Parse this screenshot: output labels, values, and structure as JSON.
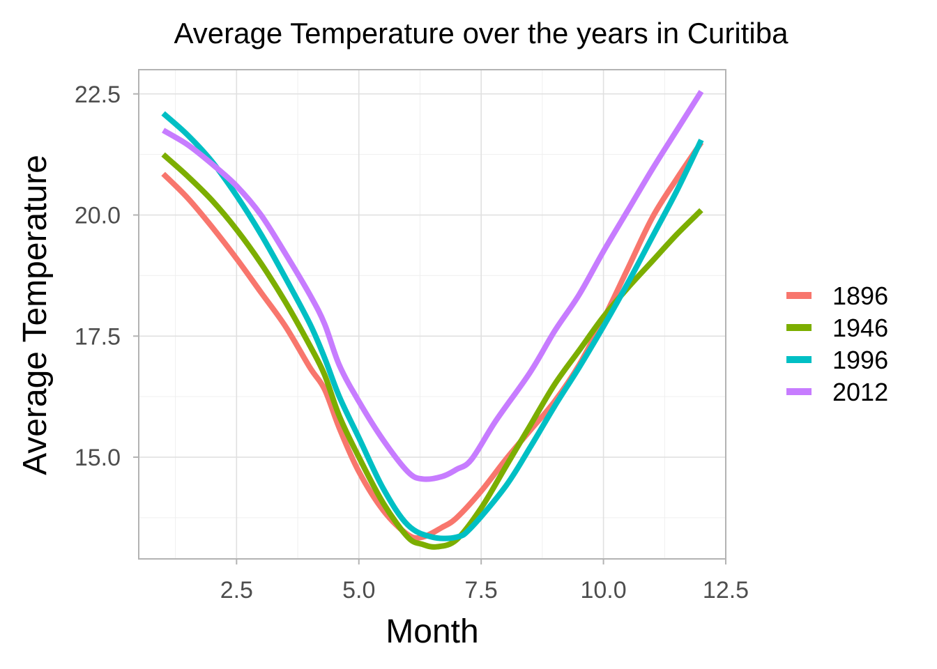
{
  "chart_data": {
    "type": "line",
    "title": "Average Temperature over the years in Curitiba",
    "xlabel": "Month",
    "ylabel": "Average Temperature",
    "xlim": [
      0.5,
      12.5
    ],
    "ylim": [
      12.9,
      23.0
    ],
    "x_ticks": [
      2.5,
      5.0,
      7.5,
      10.0,
      12.5
    ],
    "x_tick_labels": [
      "2.5",
      "5.0",
      "7.5",
      "10.0",
      "12.5"
    ],
    "y_ticks": [
      15.0,
      17.5,
      20.0,
      22.5
    ],
    "y_tick_labels": [
      "15.0",
      "17.5",
      "20.0",
      "22.5"
    ],
    "grid": true,
    "legend_position": "right",
    "series": [
      {
        "name": "1896",
        "color": "#F8766D",
        "points": [
          [
            1,
            20.85
          ],
          [
            1.5,
            20.35
          ],
          [
            2,
            19.75
          ],
          [
            2.5,
            19.1
          ],
          [
            3,
            18.4
          ],
          [
            3.5,
            17.7
          ],
          [
            4,
            16.85
          ],
          [
            4.3,
            16.4
          ],
          [
            4.6,
            15.6
          ],
          [
            5,
            14.7
          ],
          [
            5.5,
            13.9
          ],
          [
            6,
            13.4
          ],
          [
            6.3,
            13.35
          ],
          [
            6.7,
            13.55
          ],
          [
            7,
            13.75
          ],
          [
            7.5,
            14.3
          ],
          [
            8,
            14.95
          ],
          [
            8.5,
            15.55
          ],
          [
            9,
            16.15
          ],
          [
            9.5,
            16.9
          ],
          [
            10,
            17.85
          ],
          [
            10.5,
            18.9
          ],
          [
            11,
            19.95
          ],
          [
            11.5,
            20.75
          ],
          [
            12,
            21.5
          ]
        ]
      },
      {
        "name": "1946",
        "color": "#7CAE00",
        "points": [
          [
            1,
            21.25
          ],
          [
            1.5,
            20.8
          ],
          [
            2,
            20.3
          ],
          [
            2.5,
            19.7
          ],
          [
            3,
            19.0
          ],
          [
            3.5,
            18.2
          ],
          [
            4,
            17.3
          ],
          [
            4.3,
            16.7
          ],
          [
            4.6,
            15.85
          ],
          [
            5,
            15.0
          ],
          [
            5.5,
            14.05
          ],
          [
            6,
            13.35
          ],
          [
            6.3,
            13.2
          ],
          [
            6.6,
            13.15
          ],
          [
            7,
            13.3
          ],
          [
            7.5,
            13.95
          ],
          [
            8,
            14.8
          ],
          [
            8.5,
            15.65
          ],
          [
            9,
            16.5
          ],
          [
            9.5,
            17.2
          ],
          [
            10,
            17.9
          ],
          [
            10.5,
            18.5
          ],
          [
            11,
            19.05
          ],
          [
            11.5,
            19.6
          ],
          [
            12,
            20.1
          ]
        ]
      },
      {
        "name": "1996",
        "color": "#00BFC4",
        "points": [
          [
            1,
            22.1
          ],
          [
            1.5,
            21.65
          ],
          [
            2,
            21.1
          ],
          [
            2.5,
            20.4
          ],
          [
            3,
            19.6
          ],
          [
            3.5,
            18.7
          ],
          [
            4,
            17.75
          ],
          [
            4.3,
            17.05
          ],
          [
            4.6,
            16.25
          ],
          [
            5,
            15.4
          ],
          [
            5.5,
            14.35
          ],
          [
            6,
            13.6
          ],
          [
            6.5,
            13.35
          ],
          [
            7,
            13.35
          ],
          [
            7.3,
            13.55
          ],
          [
            8,
            14.4
          ],
          [
            8.5,
            15.2
          ],
          [
            9,
            16.05
          ],
          [
            9.5,
            16.85
          ],
          [
            10,
            17.7
          ],
          [
            10.5,
            18.6
          ],
          [
            11,
            19.55
          ],
          [
            11.5,
            20.5
          ],
          [
            12,
            21.55
          ]
        ]
      },
      {
        "name": "2012",
        "color": "#C77CFF",
        "points": [
          [
            1,
            21.75
          ],
          [
            1.5,
            21.45
          ],
          [
            2,
            21.05
          ],
          [
            2.5,
            20.6
          ],
          [
            3,
            20.0
          ],
          [
            3.5,
            19.2
          ],
          [
            4,
            18.35
          ],
          [
            4.3,
            17.75
          ],
          [
            4.6,
            16.9
          ],
          [
            5,
            16.15
          ],
          [
            5.5,
            15.35
          ],
          [
            6,
            14.7
          ],
          [
            6.3,
            14.55
          ],
          [
            6.7,
            14.6
          ],
          [
            7,
            14.75
          ],
          [
            7.3,
            14.95
          ],
          [
            7.8,
            15.75
          ],
          [
            8.5,
            16.75
          ],
          [
            9,
            17.6
          ],
          [
            9.5,
            18.35
          ],
          [
            10,
            19.25
          ],
          [
            10.5,
            20.1
          ],
          [
            11,
            20.95
          ],
          [
            11.5,
            21.75
          ],
          [
            12,
            22.55
          ]
        ]
      }
    ]
  }
}
